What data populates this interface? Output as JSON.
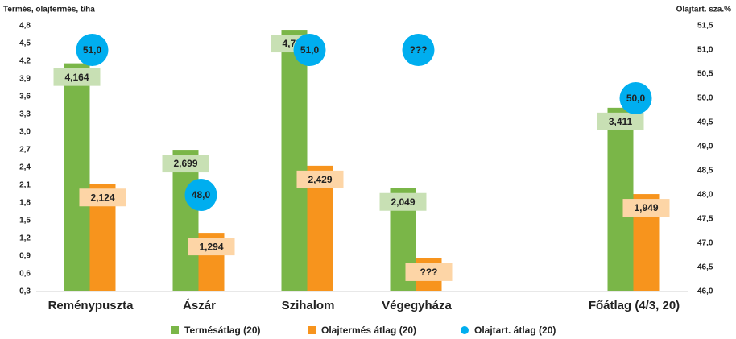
{
  "chart_data": {
    "type": "bar",
    "y_label": "Termés, olajtermés, t/ha",
    "y2_label": "Olajtart. sza.%",
    "categories": [
      "Reménypuszta",
      "Ászár",
      "Szihalom",
      "Végegyháza",
      null,
      "Főátlag (4/3, 20)"
    ],
    "series": [
      {
        "name": "Termésátlag (20)",
        "color": "#7ab648",
        "label_color": "#c8e0b4",
        "values": [
          4.164,
          2.699,
          4.731,
          2.049,
          null,
          3.411
        ],
        "value_labels": [
          "4,164",
          "2,699",
          "4,731",
          "2,049",
          null,
          "3,411"
        ]
      },
      {
        "name": "Olajtermés átlag (20)",
        "color": "#f7941d",
        "label_color": "#fdd5a6",
        "values": [
          2.124,
          1.294,
          2.429,
          0.86,
          null,
          1.949
        ],
        "value_labels": [
          "2,124",
          "1,294",
          "2,429",
          "???",
          null,
          "1,949"
        ]
      },
      {
        "name": "Olajtart. átlag (20)",
        "color": "#00aeef",
        "axis": "y2",
        "values": [
          51.0,
          48.0,
          51.0,
          51.0,
          null,
          50.0
        ],
        "value_labels": [
          "51,0",
          "48,0",
          "51,0",
          "???",
          null,
          "50,0"
        ]
      }
    ],
    "ylim": [
      0.3,
      4.8
    ],
    "yticks": [
      {
        "value": 0.3,
        "label": "0,3"
      },
      {
        "value": 0.6,
        "label": "0,6"
      },
      {
        "value": 0.9,
        "label": "0,9"
      },
      {
        "value": 1.2,
        "label": "1,2"
      },
      {
        "value": 1.5,
        "label": "1,5"
      },
      {
        "value": 1.8,
        "label": "1,8"
      },
      {
        "value": 2.1,
        "label": "2,1"
      },
      {
        "value": 2.4,
        "label": "2,4"
      },
      {
        "value": 2.7,
        "label": "2,7"
      },
      {
        "value": 3.0,
        "label": "3,0"
      },
      {
        "value": 3.3,
        "label": "3,3"
      },
      {
        "value": 3.6,
        "label": "3,6"
      },
      {
        "value": 3.9,
        "label": "3,9"
      },
      {
        "value": 4.2,
        "label": "4,2"
      },
      {
        "value": 4.5,
        "label": "4,5"
      },
      {
        "value": 4.8,
        "label": "4,8"
      }
    ],
    "y2lim": [
      46.0,
      51.5
    ],
    "y2ticks": [
      {
        "value": 46.0,
        "label": "46,0"
      },
      {
        "value": 46.5,
        "label": "46,5"
      },
      {
        "value": 47.0,
        "label": "47,0"
      },
      {
        "value": 47.5,
        "label": "47,5"
      },
      {
        "value": 48.0,
        "label": "48,0"
      },
      {
        "value": 48.5,
        "label": "48,5"
      },
      {
        "value": 49.0,
        "label": "49,0"
      },
      {
        "value": 49.5,
        "label": "49,5"
      },
      {
        "value": 50.0,
        "label": "50,0"
      },
      {
        "value": 50.5,
        "label": "50,5"
      },
      {
        "value": 51.0,
        "label": "51,0"
      },
      {
        "value": 51.5,
        "label": "51,5"
      }
    ],
    "grid": false,
    "legend": "bottom"
  }
}
